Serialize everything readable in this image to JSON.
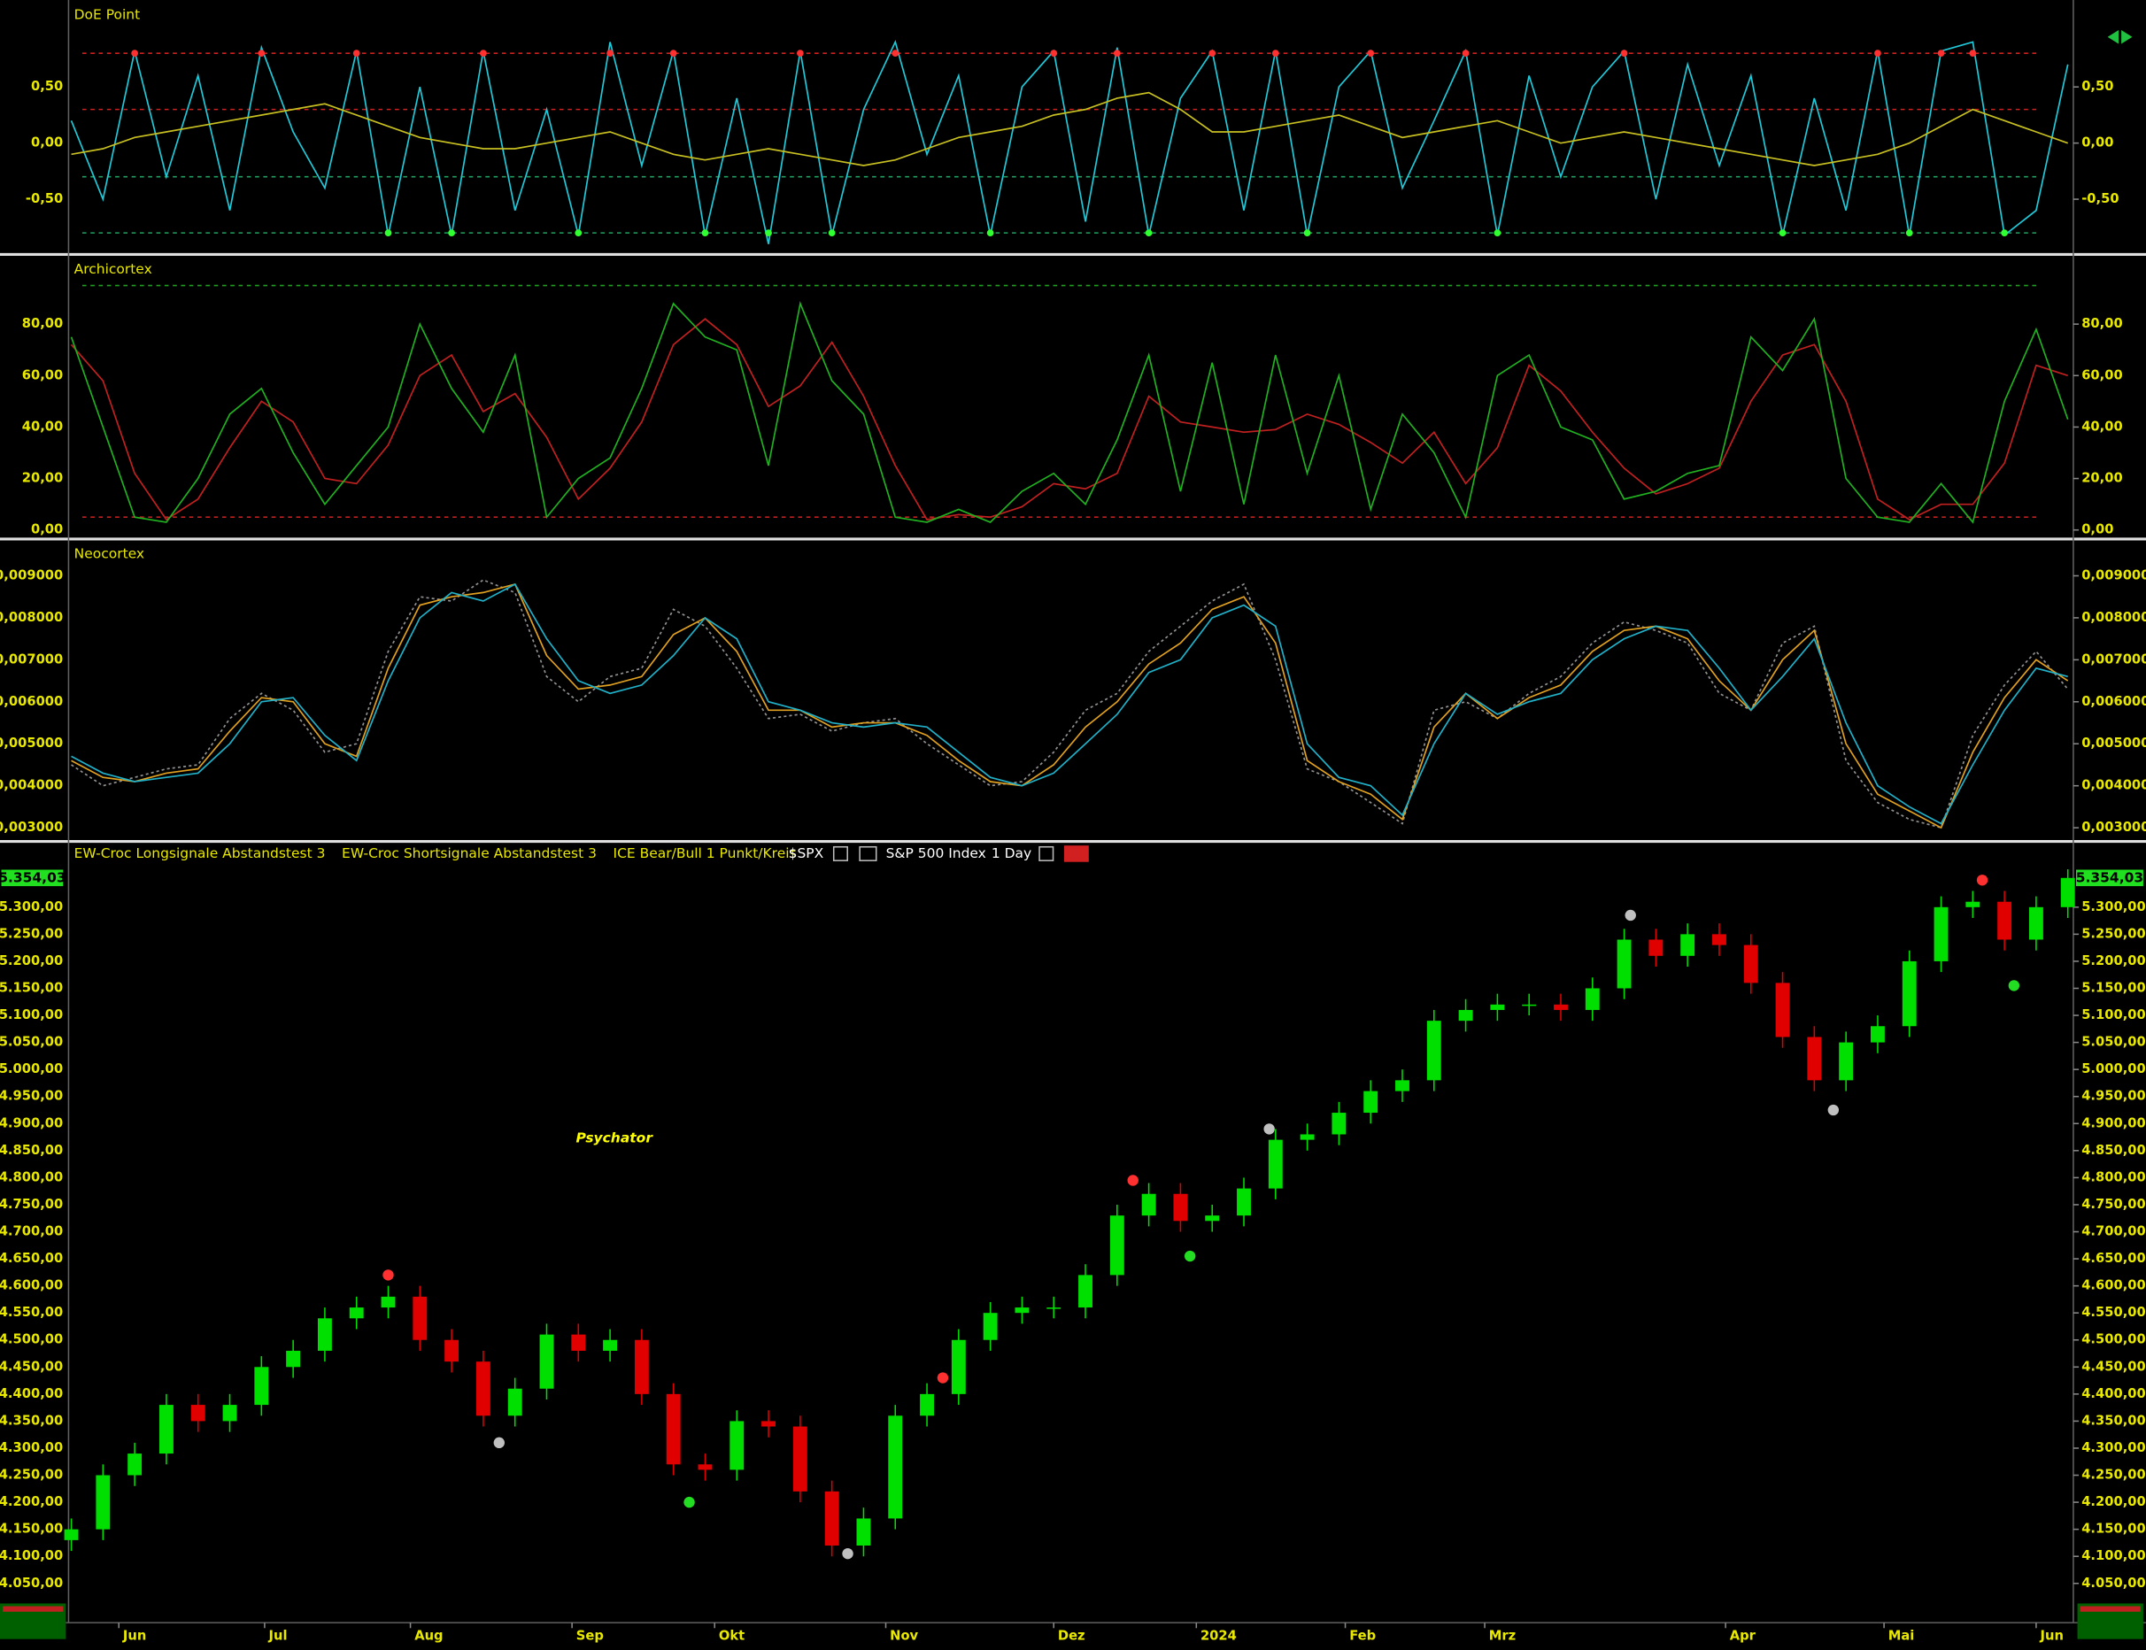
{
  "chart_data": [
    {
      "type": "line",
      "title": "DoE Point",
      "xlim": [
        0,
        63
      ],
      "ylim": [
        -0.98,
        1.25
      ],
      "yticks": [
        {
          "value": 0.5,
          "label": "0,50"
        },
        {
          "value": 0,
          "label": "0,00"
        },
        {
          "value": -0.5,
          "label": "-0,50"
        }
      ],
      "reference_lines": [
        {
          "value": 0.8,
          "color": "#d02020"
        },
        {
          "value": 0.3,
          "color": "#d02020"
        },
        {
          "value": -0.3,
          "color": "#20a060"
        },
        {
          "value": -0.8,
          "color": "#20a060"
        }
      ],
      "series": [
        {
          "color": "#20c8d8",
          "values": [
            0.2,
            -0.5,
            0.82,
            -0.3,
            0.6,
            -0.6,
            0.85,
            0.1,
            -0.4,
            0.82,
            -0.82,
            0.5,
            -0.82,
            0.82,
            -0.6,
            0.3,
            -0.82,
            0.9,
            -0.2,
            0.82,
            -0.82,
            0.4,
            -0.9,
            0.82,
            -0.82,
            0.3,
            0.9,
            -0.1,
            0.6,
            -0.82,
            0.5,
            0.82,
            -0.7,
            0.85,
            -0.82,
            0.4,
            0.82,
            -0.6,
            0.82,
            -0.82,
            0.5,
            0.82,
            -0.4,
            0.2,
            0.82,
            -0.82,
            0.6,
            -0.3,
            0.5,
            0.82,
            -0.5,
            0.7,
            -0.2,
            0.6,
            -0.82,
            0.4,
            -0.6,
            0.82,
            -0.82,
            0.82,
            0.9,
            -0.82,
            -0.6,
            0.7
          ]
        },
        {
          "color": "#c8c020",
          "values": [
            -0.1,
            -0.05,
            0.05,
            0.1,
            0.15,
            0.2,
            0.25,
            0.3,
            0.35,
            0.25,
            0.15,
            0.05,
            0.0,
            -0.05,
            -0.05,
            0.0,
            0.05,
            0.1,
            0.0,
            -0.1,
            -0.15,
            -0.1,
            -0.05,
            -0.1,
            -0.15,
            -0.2,
            -0.15,
            -0.05,
            0.05,
            0.1,
            0.15,
            0.25,
            0.3,
            0.4,
            0.45,
            0.3,
            0.1,
            0.1,
            0.15,
            0.2,
            0.25,
            0.15,
            0.05,
            0.1,
            0.15,
            0.2,
            0.1,
            0.0,
            0.05,
            0.1,
            0.05,
            0.0,
            -0.05,
            -0.1,
            -0.15,
            -0.2,
            -0.15,
            -0.1,
            0.0,
            0.15,
            0.3,
            0.2,
            0.1,
            0.0
          ]
        }
      ]
    },
    {
      "type": "line",
      "title": "Archicortex",
      "xlim": [
        0,
        63
      ],
      "ylim": [
        -3,
        106
      ],
      "yticks": [
        {
          "value": 0,
          "label": "0,00"
        },
        {
          "value": 20,
          "label": "20,00"
        },
        {
          "value": 40,
          "label": "40,00"
        },
        {
          "value": 60,
          "label": "60,00"
        },
        {
          "value": 80,
          "label": "80,00"
        }
      ],
      "reference_lines": [
        {
          "value": 95,
          "color": "#20a020"
        },
        {
          "value": 5,
          "color": "#c02020"
        }
      ],
      "series": [
        {
          "color": "#c02020",
          "values": [
            72,
            58,
            22,
            4,
            12,
            32,
            50,
            42,
            20,
            18,
            33,
            60,
            68,
            46,
            53,
            36,
            12,
            24,
            42,
            72,
            82,
            72,
            48,
            56,
            73,
            52,
            25,
            4,
            6,
            5,
            9,
            18,
            16,
            22,
            52,
            42,
            40,
            38,
            39,
            45,
            41,
            34,
            26,
            38,
            18,
            32,
            64,
            54,
            38,
            24,
            14,
            18,
            24,
            50,
            68,
            72,
            50,
            12,
            4,
            10,
            10,
            26,
            64,
            60
          ]
        },
        {
          "color": "#20b020",
          "values": [
            75,
            40,
            5,
            3,
            20,
            45,
            55,
            30,
            10,
            25,
            40,
            80,
            55,
            38,
            68,
            5,
            20,
            28,
            55,
            88,
            75,
            70,
            25,
            88,
            58,
            45,
            5,
            3,
            8,
            3,
            15,
            22,
            10,
            35,
            68,
            15,
            65,
            10,
            68,
            22,
            60,
            8,
            45,
            30,
            5,
            60,
            68,
            40,
            35,
            12,
            15,
            22,
            25,
            75,
            62,
            82,
            20,
            5,
            3,
            18,
            3,
            50,
            78,
            43
          ]
        }
      ]
    },
    {
      "type": "line",
      "title": "Neocortex",
      "xlim": [
        0,
        63
      ],
      "ylim": [
        0.00274,
        0.00981
      ],
      "yticks": [
        {
          "value": 0.003,
          "label": "0,003000"
        },
        {
          "value": 0.004,
          "label": "0,004000"
        },
        {
          "value": 0.005,
          "label": "0,005000"
        },
        {
          "value": 0.006,
          "label": "0,006000"
        },
        {
          "value": 0.007,
          "label": "0,007000"
        },
        {
          "value": 0.008,
          "label": "0,008000"
        },
        {
          "value": 0.009,
          "label": "0,009000"
        }
      ],
      "series": [
        {
          "color": "#909090",
          "dashed": true,
          "values": [
            0.0045,
            0.004,
            0.0042,
            0.0044,
            0.0045,
            0.0056,
            0.0062,
            0.0058,
            0.0048,
            0.005,
            0.0072,
            0.0085,
            0.0084,
            0.0089,
            0.0086,
            0.0066,
            0.006,
            0.0066,
            0.0068,
            0.0082,
            0.0078,
            0.0068,
            0.0056,
            0.0057,
            0.0053,
            0.0055,
            0.0056,
            0.005,
            0.0045,
            0.004,
            0.0041,
            0.0048,
            0.0058,
            0.0062,
            0.0072,
            0.0078,
            0.0084,
            0.0088,
            0.007,
            0.0044,
            0.0041,
            0.0036,
            0.0031,
            0.0058,
            0.006,
            0.0056,
            0.0062,
            0.0066,
            0.0074,
            0.0079,
            0.0077,
            0.0074,
            0.0062,
            0.0058,
            0.0074,
            0.0078,
            0.0046,
            0.0036,
            0.0032,
            0.003,
            0.0052,
            0.0064,
            0.0072,
            0.0063
          ]
        },
        {
          "color": "#e0a020",
          "values": [
            0.0046,
            0.0042,
            0.0041,
            0.0043,
            0.0044,
            0.0053,
            0.0061,
            0.006,
            0.005,
            0.0047,
            0.0068,
            0.0083,
            0.0085,
            0.0086,
            0.0088,
            0.0071,
            0.0063,
            0.0064,
            0.0066,
            0.0076,
            0.008,
            0.0072,
            0.0058,
            0.0058,
            0.0054,
            0.0055,
            0.0055,
            0.0052,
            0.0046,
            0.0041,
            0.004,
            0.0045,
            0.0054,
            0.006,
            0.0069,
            0.0074,
            0.0082,
            0.0085,
            0.0074,
            0.0046,
            0.0041,
            0.0038,
            0.0032,
            0.0054,
            0.0062,
            0.0056,
            0.0061,
            0.0064,
            0.0072,
            0.0077,
            0.0078,
            0.0075,
            0.0065,
            0.0058,
            0.007,
            0.0077,
            0.005,
            0.0038,
            0.0034,
            0.003,
            0.0048,
            0.0061,
            0.007,
            0.0065
          ]
        },
        {
          "color": "#20b0c8",
          "values": [
            0.0047,
            0.0043,
            0.0041,
            0.0042,
            0.0043,
            0.005,
            0.006,
            0.0061,
            0.0052,
            0.0046,
            0.0065,
            0.008,
            0.0086,
            0.0084,
            0.0088,
            0.0075,
            0.0065,
            0.0062,
            0.0064,
            0.0071,
            0.008,
            0.0075,
            0.006,
            0.0058,
            0.0055,
            0.0054,
            0.0055,
            0.0054,
            0.0048,
            0.0042,
            0.004,
            0.0043,
            0.005,
            0.0057,
            0.0067,
            0.007,
            0.008,
            0.0083,
            0.0078,
            0.005,
            0.0042,
            0.004,
            0.0033,
            0.005,
            0.0062,
            0.0057,
            0.006,
            0.0062,
            0.007,
            0.0075,
            0.0078,
            0.0077,
            0.0068,
            0.0058,
            0.0066,
            0.0075,
            0.0055,
            0.004,
            0.0035,
            0.0031,
            0.0045,
            0.0058,
            0.0068,
            0.0066
          ]
        }
      ]
    },
    {
      "type": "candlestick",
      "title": "Psychator",
      "legend": [
        "EW-Croc Longsignale Abstandstest 3",
        "EW-Croc Shortsignale Abstandstest 3",
        "ICE Bear/Bull 1 Punkt/Kreis"
      ],
      "symbol": "$SPX",
      "instrument": "S&P 500 Index",
      "interval": "1 Day",
      "last_value_label": "5.354,03",
      "xlim": [
        0,
        63
      ],
      "ylim": [
        3980,
        5376
      ],
      "xticks": [
        {
          "value": 1.5,
          "label": "Jun"
        },
        {
          "value": 6.1,
          "label": "Jul"
        },
        {
          "value": 10.7,
          "label": "Aug"
        },
        {
          "value": 15.8,
          "label": "Sep"
        },
        {
          "value": 20.3,
          "label": "Okt"
        },
        {
          "value": 25.7,
          "label": "Nov"
        },
        {
          "value": 31.0,
          "label": "Dez"
        },
        {
          "value": 35.5,
          "label": "2024"
        },
        {
          "value": 40.2,
          "label": "Feb"
        },
        {
          "value": 44.6,
          "label": "Mrz"
        },
        {
          "value": 52.2,
          "label": "Apr"
        },
        {
          "value": 57.2,
          "label": "Mai"
        },
        {
          "value": 62.0,
          "label": "Jun"
        }
      ],
      "yticks": [
        {
          "value": 4050,
          "label": "4.050,00"
        },
        {
          "value": 4100,
          "label": "4.100,00"
        },
        {
          "value": 4150,
          "label": "4.150,00"
        },
        {
          "value": 4200,
          "label": "4.200,00"
        },
        {
          "value": 4250,
          "label": "4.250,00"
        },
        {
          "value": 4300,
          "label": "4.300,00"
        },
        {
          "value": 4350,
          "label": "4.350,00"
        },
        {
          "value": 4400,
          "label": "4.400,00"
        },
        {
          "value": 4450,
          "label": "4.450,00"
        },
        {
          "value": 4500,
          "label": "4.500,00"
        },
        {
          "value": 4550,
          "label": "4.550,00"
        },
        {
          "value": 4600,
          "label": "4.600,00"
        },
        {
          "value": 4650,
          "label": "4.650,00"
        },
        {
          "value": 4700,
          "label": "4.700,00"
        },
        {
          "value": 4750,
          "label": "4.750,00"
        },
        {
          "value": 4800,
          "label": "4.800,00"
        },
        {
          "value": 4850,
          "label": "4.850,00"
        },
        {
          "value": 4900,
          "label": "4.900,00"
        },
        {
          "value": 4950,
          "label": "4.950,00"
        },
        {
          "value": 5000,
          "label": "5.000,00"
        },
        {
          "value": 5050,
          "label": "5.050,00"
        },
        {
          "value": 5100,
          "label": "5.100,00"
        },
        {
          "value": 5150,
          "label": "5.150,00"
        },
        {
          "value": 5200,
          "label": "5.200,00"
        },
        {
          "value": 5250,
          "label": "5.250,00"
        },
        {
          "value": 5300,
          "label": "5.300,00"
        }
      ],
      "up_color": "#00e000",
      "down_color": "#e00000",
      "open": [
        4130,
        4150,
        4250,
        4290,
        4380,
        4350,
        4380,
        4450,
        4480,
        4540,
        4560,
        4580,
        4500,
        4460,
        4360,
        4410,
        4510,
        4480,
        4500,
        4400,
        4270,
        4260,
        4350,
        4340,
        4220,
        4120,
        4170,
        4360,
        4400,
        4500,
        4550,
        4560,
        4560,
        4620,
        4730,
        4770,
        4720,
        4730,
        4780,
        4870,
        4880,
        4920,
        4960,
        4980,
        5090,
        5110,
        5120,
        5120,
        5110,
        5150,
        5240,
        5210,
        5250,
        5230,
        5160,
        5060,
        4980,
        5050,
        5080,
        5200,
        5300,
        5310,
        5240,
        5300
      ],
      "high": [
        4170,
        4270,
        4310,
        4400,
        4400,
        4400,
        4470,
        4500,
        4560,
        4580,
        4600,
        4600,
        4520,
        4480,
        4430,
        4530,
        4530,
        4520,
        4520,
        4420,
        4290,
        4370,
        4370,
        4360,
        4240,
        4190,
        4380,
        4420,
        4520,
        4570,
        4580,
        4580,
        4640,
        4750,
        4790,
        4790,
        4750,
        4800,
        4890,
        4900,
        4940,
        4980,
        5000,
        5110,
        5130,
        5140,
        5140,
        5140,
        5170,
        5260,
        5260,
        5270,
        5270,
        5250,
        5180,
        5080,
        5070,
        5100,
        5220,
        5320,
        5330,
        5330,
        5320,
        5370
      ],
      "low": [
        4110,
        4130,
        4230,
        4270,
        4330,
        4330,
        4360,
        4430,
        4460,
        4520,
        4540,
        4480,
        4440,
        4340,
        4340,
        4390,
        4460,
        4460,
        4380,
        4250,
        4240,
        4240,
        4320,
        4200,
        4100,
        4100,
        4150,
        4340,
        4380,
        4480,
        4530,
        4540,
        4540,
        4600,
        4710,
        4700,
        4700,
        4710,
        4760,
        4850,
        4860,
        4900,
        4940,
        4960,
        5070,
        5090,
        5100,
        5090,
        5090,
        5130,
        5190,
        5190,
        5210,
        5140,
        5040,
        4960,
        4960,
        5030,
        5060,
        5180,
        5280,
        5220,
        5220,
        5280
      ],
      "close": [
        4150,
        4250,
        4290,
        4380,
        4350,
        4380,
        4450,
        4480,
        4540,
        4560,
        4580,
        4500,
        4460,
        4360,
        4410,
        4510,
        4480,
        4500,
        4400,
        4270,
        4260,
        4350,
        4340,
        4220,
        4120,
        4170,
        4360,
        4400,
        4500,
        4550,
        4560,
        4560,
        4620,
        4730,
        4770,
        4720,
        4730,
        4780,
        4870,
        4880,
        4920,
        4960,
        4980,
        5090,
        5110,
        5120,
        5120,
        5110,
        5150,
        5240,
        5210,
        5250,
        5230,
        5160,
        5060,
        4980,
        5050,
        5080,
        5200,
        5300,
        5310,
        5240,
        5300,
        5354.03
      ],
      "markers": [
        {
          "x": 10,
          "value": 4620,
          "color": "#ff3030"
        },
        {
          "x": 13.5,
          "value": 4310,
          "color": "#c0c0c0"
        },
        {
          "x": 19.5,
          "value": 4200,
          "color": "#22dd22"
        },
        {
          "x": 24.5,
          "value": 4105,
          "color": "#c0c0c0"
        },
        {
          "x": 27.5,
          "value": 4430,
          "color": "#ff3030"
        },
        {
          "x": 33.5,
          "value": 4795,
          "color": "#ff3030"
        },
        {
          "x": 35.3,
          "value": 4655,
          "color": "#22dd22"
        },
        {
          "x": 37.8,
          "value": 4890,
          "color": "#c0c0c0"
        },
        {
          "x": 49.2,
          "value": 5285,
          "color": "#c0c0c0"
        },
        {
          "x": 55.6,
          "value": 4925,
          "color": "#c0c0c0"
        },
        {
          "x": 60.3,
          "value": 5350,
          "color": "#ff3030"
        },
        {
          "x": 61.3,
          "value": 5155,
          "color": "#22dd22"
        }
      ]
    }
  ]
}
